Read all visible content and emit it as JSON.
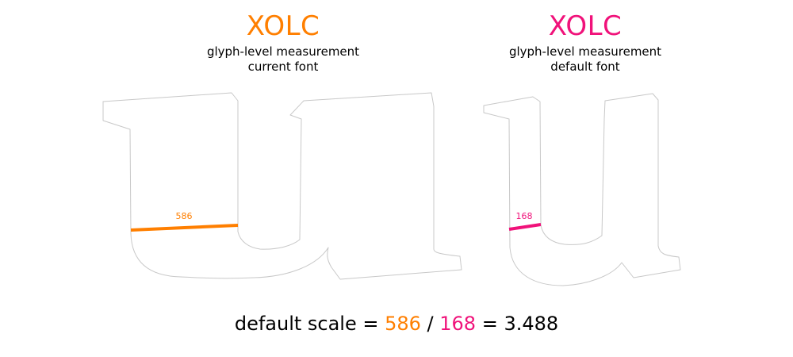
{
  "colors": {
    "current": "#ff7f00",
    "default": "#f0127a",
    "text": "#000000",
    "outline": "#c8c8c8"
  },
  "left_panel": {
    "title": "XOLC",
    "subtitle_1": "glyph-level measurement",
    "subtitle_2": "current font",
    "measurement": 586
  },
  "right_panel": {
    "title": "XOLC",
    "subtitle_1": "glyph-level measurement",
    "subtitle_2": "default font",
    "measurement": 168
  },
  "formula": {
    "prefix": "default scale = ",
    "numerator": "586",
    "divider": " / ",
    "denominator": "168",
    "equals": " = ",
    "result": "3.488"
  }
}
